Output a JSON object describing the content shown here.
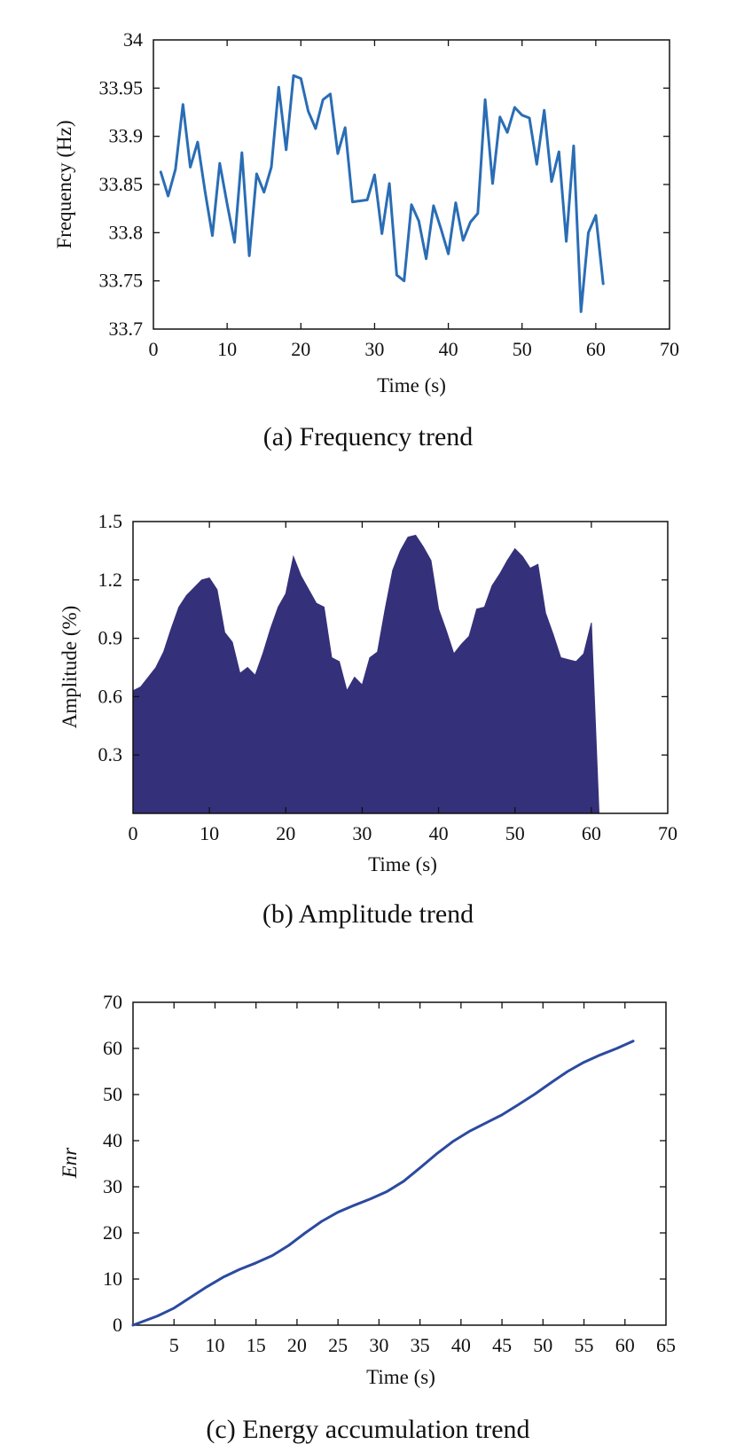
{
  "chart_data": [
    {
      "type": "line",
      "caption": "(a) Frequency trend",
      "xlabel": "Time (s)",
      "ylabel": "Frequency (Hz)",
      "xlim": [
        0,
        70
      ],
      "ylim": [
        33.7,
        34
      ],
      "xticks": [
        0,
        10,
        20,
        30,
        40,
        50,
        60,
        70
      ],
      "yticks": [
        33.7,
        33.75,
        33.8,
        33.85,
        33.9,
        33.95,
        34
      ],
      "ytick_labels": [
        "33.7",
        "33.75",
        "33.8",
        "33.85",
        "33.9",
        "33.95",
        "34"
      ],
      "grid": false,
      "color": "#2a6db5",
      "series": [
        {
          "x": [
            1,
            2,
            3,
            4,
            5,
            6,
            7,
            8,
            9,
            10,
            11,
            12,
            13,
            14,
            15,
            16,
            17,
            18,
            19,
            20,
            21,
            22,
            23,
            24,
            25,
            26,
            27,
            28,
            29,
            30,
            31,
            32,
            33,
            34,
            35,
            36,
            37,
            38,
            39,
            40,
            41,
            42,
            43,
            44,
            45,
            46,
            47,
            48,
            49,
            50,
            51,
            52,
            53,
            54,
            55,
            56,
            57,
            58,
            59,
            60,
            61
          ],
          "values": [
            33.863,
            33.838,
            33.866,
            33.933,
            33.868,
            33.894,
            33.843,
            33.797,
            33.872,
            33.83,
            33.79,
            33.883,
            33.776,
            33.861,
            33.842,
            33.868,
            33.951,
            33.886,
            33.963,
            33.96,
            33.926,
            33.908,
            33.938,
            33.944,
            33.882,
            33.909,
            33.832,
            33.833,
            33.834,
            33.86,
            33.799,
            33.851,
            33.756,
            33.75,
            33.829,
            33.812,
            33.773,
            33.828,
            33.804,
            33.778,
            33.831,
            33.792,
            33.811,
            33.82,
            33.938,
            33.851,
            33.92,
            33.904,
            33.93,
            33.922,
            33.919,
            33.871,
            33.927,
            33.853,
            33.884,
            33.791,
            33.89,
            33.718,
            33.8,
            33.818,
            33.747
          ]
        }
      ]
    },
    {
      "type": "area",
      "caption": "(b) Amplitude trend",
      "xlabel": "Time (s)",
      "ylabel": "Amplitude (%)",
      "xlim": [
        0,
        70
      ],
      "ylim": [
        0,
        1.5
      ],
      "xticks": [
        0,
        10,
        20,
        30,
        40,
        50,
        60,
        70
      ],
      "yticks": [
        0.3,
        0.6,
        0.9,
        1.2,
        1.5
      ],
      "ytick_labels": [
        "0.3",
        "0.6",
        "0.9",
        "1.2",
        "1.5"
      ],
      "grid": false,
      "color": "#35307a",
      "series": [
        {
          "x": [
            0,
            1,
            2,
            3,
            4,
            5,
            6,
            7,
            8,
            9,
            10,
            11,
            12,
            13,
            14,
            15,
            16,
            17,
            18,
            19,
            20,
            21,
            22,
            23,
            24,
            25,
            26,
            27,
            28,
            29,
            30,
            31,
            32,
            33,
            34,
            35,
            36,
            37,
            38,
            39,
            40,
            41,
            42,
            43,
            44,
            45,
            46,
            47,
            48,
            49,
            50,
            51,
            52,
            53,
            54,
            55,
            56,
            57,
            58,
            59,
            60,
            61
          ],
          "values": [
            0.63,
            0.65,
            0.7,
            0.75,
            0.83,
            0.95,
            1.06,
            1.12,
            1.16,
            1.2,
            1.21,
            1.15,
            0.93,
            0.88,
            0.72,
            0.75,
            0.71,
            0.82,
            0.95,
            1.06,
            1.13,
            1.32,
            1.22,
            1.15,
            1.08,
            1.06,
            0.8,
            0.78,
            0.63,
            0.7,
            0.66,
            0.8,
            0.83,
            1.05,
            1.25,
            1.35,
            1.42,
            1.43,
            1.37,
            1.3,
            1.05,
            0.94,
            0.82,
            0.87,
            0.91,
            1.05,
            1.06,
            1.17,
            1.23,
            1.3,
            1.36,
            1.32,
            1.26,
            1.28,
            1.03,
            0.92,
            0.8,
            0.79,
            0.78,
            0.82,
            0.98,
            0
          ]
        }
      ]
    },
    {
      "type": "line",
      "caption": "(c) Energy accumulation trend",
      "xlabel": "Time (s)",
      "ylabel": "Enr",
      "xlim": [
        0,
        65
      ],
      "ylim": [
        0,
        70
      ],
      "xticks": [
        5,
        10,
        15,
        20,
        25,
        30,
        35,
        40,
        45,
        50,
        55,
        60,
        65
      ],
      "yticks": [
        0,
        10,
        20,
        30,
        40,
        50,
        60,
        70
      ],
      "ytick_labels": [
        "0",
        "10",
        "20",
        "30",
        "40",
        "50",
        "60",
        "70"
      ],
      "grid": false,
      "color": "#2b4aa0",
      "series": [
        {
          "x": [
            0,
            3,
            5,
            7,
            9,
            11,
            13,
            15,
            17,
            19,
            21,
            23,
            25,
            27,
            29,
            31,
            33,
            35,
            37,
            39,
            41,
            43,
            45,
            47,
            49,
            51,
            53,
            55,
            57,
            59,
            61
          ],
          "values": [
            0,
            2,
            3.7,
            6,
            8.3,
            10.4,
            12.1,
            13.5,
            15.1,
            17.3,
            20,
            22.5,
            24.5,
            26,
            27.4,
            29,
            31.2,
            34.1,
            37.1,
            39.8,
            42,
            43.8,
            45.6,
            47.8,
            50.1,
            52.6,
            55,
            57,
            58.6,
            60,
            61.6
          ]
        }
      ]
    }
  ]
}
